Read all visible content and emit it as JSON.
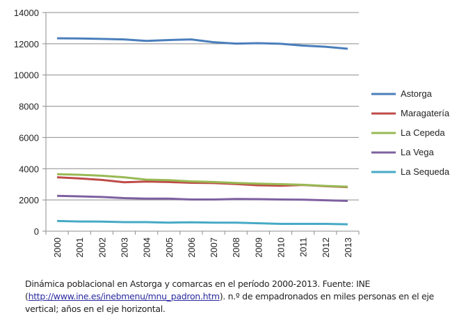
{
  "chart_data": {
    "type": "line",
    "title": "",
    "xlabel": "",
    "ylabel": "",
    "categories": [
      "2000",
      "2001",
      "2002",
      "2003",
      "2004",
      "2005",
      "2006",
      "2007",
      "2008",
      "2009",
      "2010",
      "2011",
      "2012",
      "2013"
    ],
    "ylim": [
      0,
      14000
    ],
    "yticks": [
      0,
      2000,
      4000,
      6000,
      8000,
      10000,
      12000,
      14000
    ],
    "grid": "horizontal",
    "legend_position": "right",
    "series": [
      {
        "name": "Astorga",
        "color": "#4a7ebb",
        "values": [
          12350,
          12340,
          12310,
          12280,
          12180,
          12240,
          12280,
          12100,
          12010,
          12040,
          12000,
          11880,
          11810,
          11680
        ]
      },
      {
        "name": "Maragatería",
        "color": "#be4b48",
        "values": [
          3450,
          3380,
          3280,
          3130,
          3180,
          3150,
          3100,
          3080,
          3020,
          2940,
          2910,
          2960,
          2880,
          2820
        ]
      },
      {
        "name": "La Cepeda",
        "color": "#98b954",
        "values": [
          3650,
          3610,
          3550,
          3450,
          3300,
          3270,
          3190,
          3150,
          3090,
          3040,
          3010,
          2970,
          2900,
          2850
        ]
      },
      {
        "name": "La Vega",
        "color": "#7d60a0",
        "values": [
          2260,
          2230,
          2190,
          2120,
          2080,
          2080,
          2030,
          2030,
          2060,
          2050,
          2030,
          2020,
          1980,
          1940
        ]
      },
      {
        "name": "La Sequeda",
        "color": "#46aac5",
        "values": [
          650,
          620,
          610,
          580,
          580,
          550,
          570,
          550,
          550,
          510,
          470,
          470,
          470,
          440
        ]
      }
    ]
  },
  "caption": {
    "text_before": "Dinámica poblacional en Astorga y comarcas en el período 2000-2013. Fuente: INE (",
    "link": "http://www.ine.es/inebmenu/mnu_padron.htm",
    "text_after": "). n.º de empadronados en miles personas en el eje vertical; años en el eje horizontal."
  }
}
